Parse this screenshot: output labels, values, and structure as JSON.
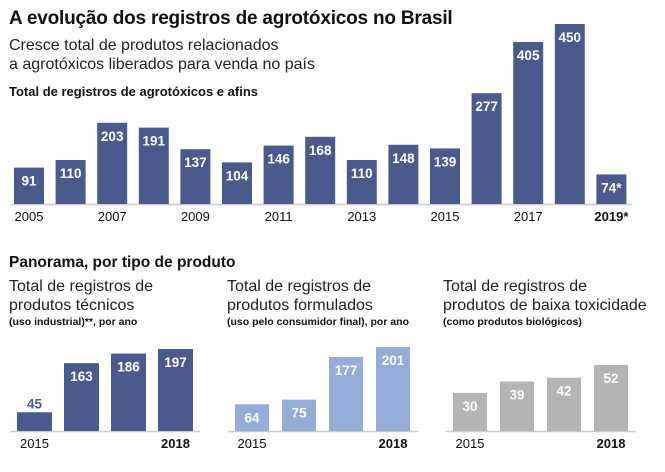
{
  "header": {
    "title": "A evolução dos registros de agrotóxicos no Brasil",
    "subtitle_line1": "Cresce total de produtos relacionados",
    "subtitle_line2": "a agrotóxicos liberados para venda no país"
  },
  "panorama_heading": "Panorama, por tipo de produto",
  "colors": {
    "main": "#4a5a8c",
    "tecnicos": "#4a5a8c",
    "formulados": "#94acd8",
    "baixa": "#b4b4b4",
    "axis": "#cccccc"
  },
  "chart_data": [
    {
      "type": "bar",
      "title": "Total de registros de agrotóxicos e afins",
      "categories": [
        "2005",
        "2006",
        "2007",
        "2008",
        "2009",
        "2010",
        "2011",
        "2012",
        "2013",
        "2014",
        "2015",
        "2016",
        "2017",
        "2018",
        "2019*"
      ],
      "values": [
        91,
        110,
        203,
        191,
        137,
        104,
        146,
        168,
        110,
        148,
        139,
        277,
        405,
        450,
        74
      ],
      "value_labels": [
        "91",
        "110",
        "203",
        "191",
        "137",
        "104",
        "146",
        "168",
        "110",
        "148",
        "139",
        "277",
        "405",
        "450",
        "74*"
      ],
      "tick_labels": [
        "2005",
        "",
        "2007",
        "",
        "2009",
        "",
        "2011",
        "",
        "2013",
        "",
        "2015",
        "",
        "2017",
        "",
        "2019*"
      ],
      "bold_ticks": [
        "2019*"
      ],
      "xlabel": "",
      "ylabel": "",
      "ylim": [
        0,
        450
      ],
      "grid": false
    },
    {
      "type": "bar",
      "title": "Total de registros de produtos técnicos",
      "note": "(uso industrial)**, por ano",
      "categories": [
        "2015",
        "2016",
        "2017",
        "2018"
      ],
      "values": [
        45,
        163,
        186,
        197
      ],
      "tick_labels": [
        "2015",
        "",
        "",
        "2018"
      ],
      "bold_ticks": [
        "2018"
      ],
      "ylim": [
        0,
        197
      ],
      "grid": false
    },
    {
      "type": "bar",
      "title": "Total de registros de produtos formulados",
      "note": "(uso pelo consumidor final), por ano",
      "categories": [
        "2015",
        "2016",
        "2017",
        "2018"
      ],
      "values": [
        64,
        75,
        177,
        201
      ],
      "tick_labels": [
        "2015",
        "",
        "",
        "2018"
      ],
      "bold_ticks": [
        "2018"
      ],
      "ylim": [
        0,
        201
      ],
      "grid": false
    },
    {
      "type": "bar",
      "title": "Total de registros de produtos de baixa toxicidade",
      "note": "(como produtos biológicos)",
      "categories": [
        "2015",
        "2016",
        "2017",
        "2018"
      ],
      "values": [
        30,
        39,
        42,
        52
      ],
      "tick_labels": [
        "2015",
        "",
        "",
        "2018"
      ],
      "bold_ticks": [
        "2018"
      ],
      "ylim": [
        0,
        52
      ],
      "grid": false
    }
  ],
  "panels": [
    {
      "title_line1": "Total de registros de",
      "title_line2": "produtos técnicos",
      "note": "(uso industrial)**, por ano"
    },
    {
      "title_line1": "Total de registros de",
      "title_line2": "produtos formulados",
      "note": "(uso pelo consumidor final), por ano"
    },
    {
      "title_line1": "Total de registros de",
      "title_line2": "produtos de baixa toxicidade",
      "note": "(como produtos biológicos)"
    }
  ]
}
